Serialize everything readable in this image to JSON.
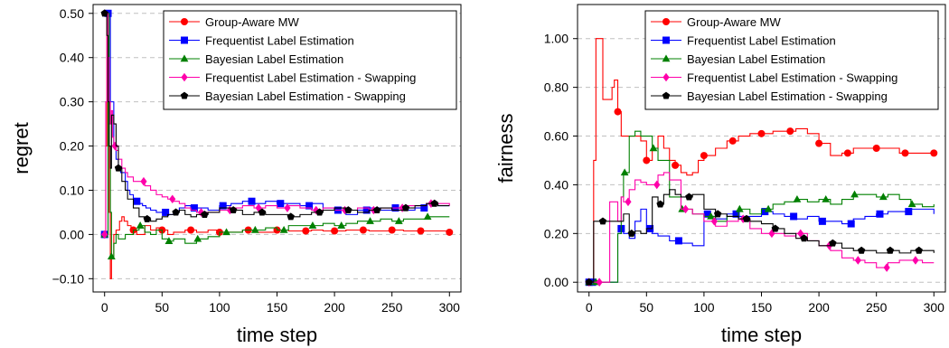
{
  "chart_data": [
    {
      "type": "line",
      "xlabel": "time step",
      "ylabel": "regret",
      "xlim": [
        -10,
        310
      ],
      "ylim": [
        -0.13,
        0.52
      ],
      "xticks": [
        0,
        50,
        100,
        150,
        200,
        250,
        300
      ],
      "xtick_labels": [
        "0",
        "50",
        "100",
        "150",
        "200",
        "250",
        "300"
      ],
      "yticks": [
        -0.1,
        0.0,
        0.1,
        0.2,
        0.3,
        0.4,
        0.5
      ],
      "ytick_labels": [
        "−0.10",
        "0.00",
        "0.10",
        "0.20",
        "0.30",
        "0.40",
        "0.50"
      ],
      "grid": "horizontal dashed",
      "legend_position": "top-right",
      "series": [
        {
          "name": "Group-Aware MW",
          "color": "#ff0000",
          "marker": "circle",
          "x": [
            0,
            1,
            2,
            3,
            4,
            5,
            6,
            8,
            10,
            13,
            15,
            17,
            20,
            23,
            26,
            28,
            30,
            35,
            40,
            45,
            50,
            55,
            60,
            70,
            80,
            90,
            100,
            110,
            120,
            130,
            140,
            150,
            160,
            170,
            180,
            190,
            200,
            210,
            220,
            230,
            240,
            250,
            260,
            270,
            280,
            290,
            300
          ],
          "y": [
            0,
            0.2,
            0.5,
            0.25,
            0.05,
            -0.1,
            -0.05,
            0.0,
            0.01,
            0.03,
            0.04,
            0.03,
            0.02,
            0.01,
            0.01,
            0.0,
            0.0,
            0.02,
            0.01,
            0.015,
            0.01,
            0.0,
            0.005,
            0.01,
            0.005,
            0.01,
            0.005,
            0.005,
            0.01,
            0.005,
            0.005,
            0.01,
            0.008,
            0.008,
            0.01,
            0.008,
            0.008,
            0.01,
            0.01,
            0.008,
            0.008,
            0.01,
            0.008,
            0.008,
            0.008,
            0.008,
            0.005
          ]
        },
        {
          "name": "Frequentist Label Estimation",
          "color": "#0000ff",
          "marker": "square",
          "x": [
            0,
            2,
            3,
            5,
            8,
            10,
            12,
            14,
            16,
            18,
            20,
            22,
            25,
            28,
            30,
            33,
            36,
            40,
            45,
            50,
            55,
            60,
            65,
            70,
            75,
            80,
            90,
            100,
            110,
            120,
            130,
            140,
            150,
            160,
            170,
            180,
            190,
            200,
            210,
            220,
            230,
            240,
            250,
            260,
            270,
            280,
            290,
            300
          ],
          "y": [
            0,
            0,
            0.5,
            0.3,
            0.2,
            0.17,
            0.15,
            0.14,
            0.14,
            0.12,
            0.1,
            0.09,
            0.08,
            0.075,
            0.07,
            0.065,
            0.06,
            0.055,
            0.05,
            0.05,
            0.045,
            0.05,
            0.06,
            0.065,
            0.06,
            0.06,
            0.055,
            0.065,
            0.07,
            0.075,
            0.07,
            0.075,
            0.07,
            0.07,
            0.065,
            0.07,
            0.06,
            0.055,
            0.045,
            0.055,
            0.06,
            0.055,
            0.06,
            0.055,
            0.06,
            0.07,
            0.065,
            0.065
          ]
        },
        {
          "name": "Bayesian Label Estimation",
          "color": "#008000",
          "marker": "triangle",
          "x": [
            0,
            2,
            3,
            4,
            5,
            6,
            8,
            10,
            12,
            15,
            18,
            20,
            25,
            30,
            35,
            40,
            45,
            50,
            55,
            60,
            65,
            70,
            80,
            90,
            100,
            110,
            120,
            130,
            140,
            150,
            160,
            170,
            180,
            190,
            200,
            210,
            220,
            230,
            240,
            250,
            260,
            270,
            280,
            290,
            300
          ],
          "y": [
            0,
            0,
            0.5,
            0.2,
            0.05,
            -0.05,
            -0.02,
            0.0,
            -0.01,
            -0.01,
            0.0,
            0.0,
            0.01,
            0.02,
            0.005,
            0.0,
            0.01,
            -0.01,
            -0.015,
            -0.01,
            -0.01,
            -0.02,
            -0.01,
            -0.005,
            0.005,
            0.005,
            0.01,
            0.01,
            0.015,
            0.01,
            0.02,
            0.02,
            0.02,
            0.025,
            0.02,
            0.025,
            0.03,
            0.03,
            0.035,
            0.03,
            0.035,
            0.035,
            0.04,
            0.04,
            0.04
          ]
        },
        {
          "name": "Frequentist Label Estimation - Swapping",
          "color": "#ff00aa",
          "marker": "diamond",
          "x": [
            0,
            1,
            2,
            3,
            4,
            5,
            6,
            7,
            8,
            10,
            12,
            15,
            18,
            20,
            25,
            30,
            35,
            40,
            45,
            50,
            55,
            60,
            65,
            70,
            75,
            80,
            90,
            100,
            110,
            120,
            130,
            140,
            150,
            160,
            170,
            180,
            190,
            200,
            210,
            220,
            230,
            240,
            250,
            260,
            270,
            280,
            290,
            300
          ],
          "y": [
            0,
            0.3,
            0.5,
            0.4,
            0.3,
            0.25,
            0.28,
            0.22,
            0.2,
            0.19,
            0.17,
            0.15,
            0.14,
            0.13,
            0.12,
            0.12,
            0.11,
            0.1,
            0.09,
            0.085,
            0.08,
            0.075,
            0.07,
            0.06,
            0.055,
            0.05,
            0.05,
            0.055,
            0.06,
            0.065,
            0.06,
            0.065,
            0.06,
            0.065,
            0.06,
            0.055,
            0.06,
            0.055,
            0.055,
            0.06,
            0.055,
            0.06,
            0.06,
            0.065,
            0.065,
            0.07,
            0.07,
            0.065
          ]
        },
        {
          "name": "Bayesian Label Estimation - Swapping",
          "color": "#000000",
          "marker": "pentagon",
          "x": [
            0,
            1,
            2,
            3,
            4,
            5,
            6,
            8,
            10,
            12,
            15,
            18,
            20,
            25,
            30,
            35,
            40,
            45,
            50,
            55,
            60,
            65,
            70,
            75,
            80,
            90,
            100,
            110,
            120,
            130,
            140,
            150,
            160,
            170,
            180,
            190,
            200,
            210,
            220,
            230,
            240,
            250,
            260,
            270,
            280,
            290,
            300
          ],
          "y": [
            0.5,
            0.5,
            0.45,
            0.3,
            0.2,
            0.15,
            0.27,
            0.25,
            0.2,
            0.15,
            0.12,
            0.1,
            0.08,
            0.06,
            0.04,
            0.035,
            0.03,
            0.035,
            0.04,
            0.045,
            0.05,
            0.055,
            0.045,
            0.04,
            0.045,
            0.05,
            0.06,
            0.055,
            0.045,
            0.05,
            0.045,
            0.045,
            0.04,
            0.045,
            0.05,
            0.055,
            0.06,
            0.055,
            0.05,
            0.055,
            0.06,
            0.055,
            0.06,
            0.065,
            0.07,
            0.065,
            0.065
          ]
        }
      ]
    },
    {
      "type": "line",
      "xlabel": "time step",
      "ylabel": "fairness",
      "xlim": [
        -10,
        310
      ],
      "ylim": [
        -0.04,
        1.14
      ],
      "xticks": [
        0,
        50,
        100,
        150,
        200,
        250,
        300
      ],
      "xtick_labels": [
        "0",
        "50",
        "100",
        "150",
        "200",
        "250",
        "300"
      ],
      "yticks": [
        0.0,
        0.2,
        0.4,
        0.6,
        0.8,
        1.0
      ],
      "ytick_labels": [
        "0.00",
        "0.20",
        "0.40",
        "0.60",
        "0.80",
        "1.00"
      ],
      "grid": "horizontal dashed",
      "legend_position": "top-right",
      "series": [
        {
          "name": "Group-Aware MW",
          "color": "#ff0000",
          "marker": "circle",
          "x": [
            0,
            3,
            4,
            6,
            8,
            10,
            12,
            15,
            18,
            20,
            22,
            25,
            28,
            30,
            35,
            40,
            45,
            50,
            55,
            60,
            65,
            70,
            75,
            80,
            85,
            90,
            95,
            100,
            110,
            120,
            130,
            140,
            150,
            160,
            170,
            180,
            190,
            200,
            210,
            220,
            230,
            240,
            250,
            260,
            270,
            280,
            290,
            300
          ],
          "y": [
            0,
            0,
            0.5,
            1.0,
            1.0,
            1.0,
            0.75,
            0.75,
            0.75,
            0.8,
            0.83,
            0.7,
            0.6,
            0.6,
            0.6,
            0.6,
            0.58,
            0.5,
            0.55,
            0.6,
            0.55,
            0.5,
            0.48,
            0.45,
            0.44,
            0.45,
            0.5,
            0.52,
            0.55,
            0.58,
            0.6,
            0.61,
            0.61,
            0.62,
            0.62,
            0.63,
            0.61,
            0.57,
            0.52,
            0.53,
            0.55,
            0.55,
            0.55,
            0.55,
            0.53,
            0.53,
            0.53,
            0.53
          ]
        },
        {
          "name": "Frequentist Label Estimation",
          "color": "#0000ff",
          "marker": "square",
          "x": [
            0,
            10,
            15,
            20,
            25,
            28,
            30,
            35,
            40,
            45,
            50,
            55,
            60,
            70,
            80,
            90,
            95,
            100,
            105,
            110,
            120,
            130,
            140,
            150,
            160,
            170,
            180,
            190,
            200,
            210,
            220,
            230,
            240,
            250,
            260,
            270,
            280,
            290,
            300
          ],
          "y": [
            0,
            0,
            0,
            0,
            0.2,
            0.22,
            0.2,
            0.18,
            0.25,
            0.3,
            0.22,
            0.2,
            0.19,
            0.17,
            0.16,
            0.15,
            0.15,
            0.28,
            0.27,
            0.26,
            0.28,
            0.27,
            0.27,
            0.29,
            0.28,
            0.27,
            0.26,
            0.27,
            0.25,
            0.25,
            0.24,
            0.26,
            0.27,
            0.28,
            0.29,
            0.29,
            0.3,
            0.3,
            0.28
          ]
        },
        {
          "name": "Bayesian Label Estimation",
          "color": "#008000",
          "marker": "triangle",
          "x": [
            0,
            10,
            15,
            20,
            25,
            28,
            30,
            35,
            40,
            45,
            50,
            55,
            60,
            70,
            80,
            90,
            100,
            110,
            120,
            130,
            140,
            150,
            160,
            170,
            180,
            190,
            200,
            210,
            220,
            230,
            240,
            250,
            260,
            270,
            280,
            290,
            300
          ],
          "y": [
            0,
            0,
            0,
            0,
            0.2,
            0.35,
            0.45,
            0.6,
            0.62,
            0.6,
            0.6,
            0.55,
            0.5,
            0.35,
            0.3,
            0.28,
            0.27,
            0.25,
            0.27,
            0.3,
            0.28,
            0.3,
            0.32,
            0.33,
            0.34,
            0.33,
            0.34,
            0.32,
            0.34,
            0.36,
            0.36,
            0.35,
            0.36,
            0.34,
            0.32,
            0.31,
            0.32
          ]
        },
        {
          "name": "Frequentist Label Estimation - Swapping",
          "color": "#ff00aa",
          "marker": "diamond",
          "x": [
            0,
            10,
            15,
            18,
            20,
            22,
            25,
            28,
            30,
            35,
            40,
            45,
            50,
            55,
            60,
            65,
            70,
            80,
            90,
            100,
            110,
            120,
            130,
            140,
            150,
            160,
            170,
            180,
            190,
            200,
            210,
            220,
            230,
            240,
            250,
            260,
            270,
            280,
            290,
            300
          ],
          "y": [
            0,
            0,
            0,
            0.33,
            0.33,
            0.33,
            0.25,
            0.35,
            0.33,
            0.38,
            0.42,
            0.41,
            0.4,
            0.4,
            0.44,
            0.45,
            0.42,
            0.3,
            0.28,
            0.25,
            0.23,
            0.25,
            0.26,
            0.22,
            0.2,
            0.2,
            0.19,
            0.2,
            0.17,
            0.15,
            0.13,
            0.1,
            0.09,
            0.08,
            0.06,
            0.08,
            0.09,
            0.09,
            0.08,
            0.08
          ]
        },
        {
          "name": "Bayesian Label Estimation - Swapping",
          "color": "#000000",
          "marker": "pentagon",
          "x": [
            0,
            3,
            4,
            5,
            8,
            10,
            15,
            20,
            25,
            30,
            35,
            40,
            45,
            50,
            55,
            60,
            65,
            70,
            75,
            80,
            90,
            100,
            110,
            120,
            130,
            140,
            150,
            160,
            170,
            180,
            190,
            200,
            210,
            220,
            230,
            240,
            250,
            260,
            270,
            280,
            290,
            300
          ],
          "y": [
            0,
            0,
            0.25,
            0.25,
            0.25,
            0.25,
            0.25,
            0.25,
            0.25,
            0.28,
            0.2,
            0.21,
            0.2,
            0.22,
            0.35,
            0.32,
            0.36,
            0.38,
            0.36,
            0.35,
            0.36,
            0.3,
            0.28,
            0.27,
            0.26,
            0.25,
            0.24,
            0.22,
            0.2,
            0.18,
            0.17,
            0.15,
            0.16,
            0.14,
            0.13,
            0.13,
            0.12,
            0.13,
            0.12,
            0.13,
            0.13,
            0.12
          ]
        }
      ]
    }
  ]
}
